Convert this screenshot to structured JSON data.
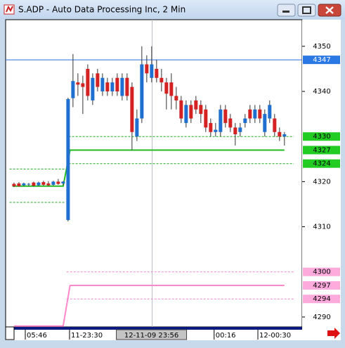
{
  "window": {
    "title": "S.ADP - Auto Data Processing Inc, 2 Min"
  },
  "chart_data": {
    "type": "candlestick",
    "open": [
      4319.5,
      4319.6,
      4319.2,
      4319.4,
      4319.8,
      4319.2,
      4319.9,
      4319.6,
      4319.3,
      4320.0,
      4319.6,
      4311.5,
      4338.5,
      4342.0,
      4341.8,
      4345,
      4338,
      4344,
      4340,
      4342,
      4340,
      4343,
      4339,
      4343,
      4341,
      4330,
      4334,
      4346,
      4343,
      4345,
      4343,
      4342,
      4342,
      4339,
      4338,
      4333,
      4337,
      4338,
      4337,
      4336,
      4333,
      4331,
      4331,
      4336,
      4334,
      4332,
      4331,
      4333,
      4336,
      4334,
      4336,
      4331,
      4334,
      4334,
      4331,
      4330
    ],
    "high": [
      4319.8,
      4319.9,
      4319.8,
      4319.7,
      4320.0,
      4320.0,
      4320.2,
      4320.1,
      4320.2,
      4320.6,
      4320.1,
      4338.6,
      4348.3,
      4344.0,
      4343.5,
      4346,
      4344,
      4345,
      4344,
      4343,
      4343,
      4344,
      4344,
      4344,
      4342,
      4336,
      4350,
      4348,
      4350,
      4347,
      4345,
      4343,
      4344,
      4341,
      4339,
      4338,
      4338,
      4339,
      4338,
      4337,
      4334,
      4333,
      4337,
      4337,
      4335,
      4333,
      4333,
      4335,
      4337,
      4337,
      4337,
      4336,
      4338,
      4335,
      4332,
      4331
    ],
    "low": [
      4318.8,
      4318.9,
      4319.0,
      4319.0,
      4318.9,
      4319.0,
      4319.1,
      4319.0,
      4319.1,
      4319.3,
      4319.2,
      4311.2,
      4336.5,
      4339.0,
      4335.0,
      4338,
      4337,
      4340,
      4339,
      4339,
      4339,
      4339,
      4338,
      4338,
      4327,
      4329,
      4333,
      4342,
      4342,
      4342,
      4340,
      4336,
      4336,
      4336,
      4333,
      4332,
      4333,
      4335,
      4333,
      4331,
      4330,
      4330,
      4330,
      4332,
      4331,
      4328,
      4330,
      4332,
      4333,
      4333,
      4333,
      4330,
      4333,
      4330,
      4329,
      4328
    ],
    "close": [
      4319.0,
      4319.0,
      4319.6,
      4319.5,
      4319.1,
      4319.8,
      4319.3,
      4319.2,
      4320.0,
      4319.5,
      4320.0,
      4338.3,
      4342.3,
      4341.5,
      4341.0,
      4339,
      4343,
      4341,
      4343,
      4340,
      4342,
      4340,
      4343,
      4339,
      4331,
      4334,
      4346,
      4344,
      4346,
      4343,
      4342,
      4339.5,
      4339,
      4338,
      4334,
      4337,
      4334,
      4336,
      4335,
      4332,
      4331,
      4331.5,
      4336,
      4333,
      4332,
      4330.5,
      4332,
      4334,
      4334,
      4336,
      4334,
      4335,
      4337,
      4331,
      4330,
      4330.5
    ],
    "up_color": "#1e6fd0",
    "down_color": "#d42222",
    "xlim": [
      -1.7,
      58.6
    ],
    "ylim": [
      4287.8,
      4355.9
    ],
    "yticks": [
      4290,
      4310,
      4320,
      4340,
      4350
    ],
    "xticks": [
      {
        "value": 2.3,
        "label": "05:46"
      },
      {
        "value": 11.3,
        "label": "11-23:30"
      },
      {
        "value": 40.7,
        "label": "00:16"
      },
      {
        "value": 49.6,
        "label": "12-00:30"
      }
    ],
    "cursor": {
      "x": 28.1,
      "label": "12-11-09 23:56"
    },
    "levels": [
      {
        "y": 4347,
        "x": [
          -1.7,
          58.6
        ],
        "color": "#2f6fdc",
        "dash": false,
        "box": "#2a78e4"
      },
      {
        "y": 4330,
        "x": [
          11.1,
          56.9
        ],
        "color": "#22aa22",
        "dash": true,
        "box": "#22cc22"
      },
      {
        "y": 4324,
        "x": [
          11.1,
          56.9
        ],
        "color": "#22aa22",
        "dash": true,
        "box": "#22cc22"
      },
      {
        "y": 4322.8,
        "x": [
          -0.9,
          10.3
        ],
        "color": "#22aa22",
        "dash": true
      },
      {
        "y": 4315.4,
        "x": [
          -0.9,
          10.3
        ],
        "color": "#22aa22",
        "dash": true
      },
      {
        "y": 4300,
        "x": [
          10.7,
          56.9
        ],
        "color": "#ee88cc",
        "dash": true,
        "box": "#ffaadd"
      },
      {
        "y": 4294,
        "x": [
          10.7,
          56.9
        ],
        "color": "#ee88cc",
        "dash": true,
        "box": "#ffaadd"
      }
    ],
    "steps": [
      {
        "x": [
          -0.3,
          10,
          11.4,
          55
        ],
        "y": [
          4319,
          4319,
          4327,
          4327
        ],
        "color": "#22bb22",
        "box": "#22cc22"
      },
      {
        "x": [
          0,
          10,
          11.4,
          55
        ],
        "y": [
          4288,
          4288,
          4297,
          4297
        ],
        "color": "#ff88cc",
        "box": "#ffaadd"
      }
    ]
  }
}
